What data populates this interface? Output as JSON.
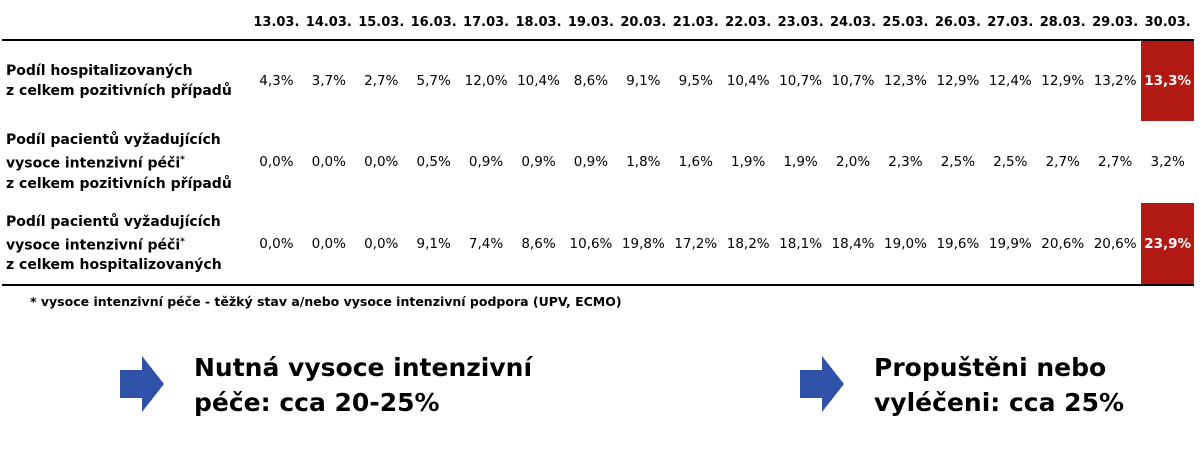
{
  "dates": [
    "13.03.",
    "14.03.",
    "15.03.",
    "16.03.",
    "17.03.",
    "18.03.",
    "19.03.",
    "20.03.",
    "21.03.",
    "22.03.",
    "23.03.",
    "24.03.",
    "25.03.",
    "26.03.",
    "27.03.",
    "28.03.",
    "29.03.",
    "30.03."
  ],
  "rows": [
    {
      "label_lines": [
        "Podíl hospitalizovaných",
        "z celkem pozitivních případů"
      ],
      "label_sup": [
        "",
        ""
      ],
      "values": [
        "4,3%",
        "3,7%",
        "2,7%",
        "5,7%",
        "12,0%",
        "10,4%",
        "8,6%",
        "9,1%",
        "9,5%",
        "10,4%",
        "10,7%",
        "10,7%",
        "12,3%",
        "12,9%",
        "12,4%",
        "12,9%",
        "13,2%",
        "13,3%"
      ],
      "highlight_last": true
    },
    {
      "label_lines": [
        "Podíl pacientů vyžadujících",
        "vysoce intenzivní péči",
        "z celkem pozitivních případů"
      ],
      "label_sup": [
        "",
        "*",
        ""
      ],
      "values": [
        "0,0%",
        "0,0%",
        "0,0%",
        "0,5%",
        "0,9%",
        "0,9%",
        "0,9%",
        "1,8%",
        "1,6%",
        "1,9%",
        "1,9%",
        "2,0%",
        "2,3%",
        "2,5%",
        "2,5%",
        "2,7%",
        "2,7%",
        "3,2%"
      ],
      "highlight_last": false
    },
    {
      "label_lines": [
        "Podíl pacientů vyžadujících",
        "vysoce intenzivní péči",
        "z celkem hospitalizovaných"
      ],
      "label_sup": [
        "",
        "*",
        ""
      ],
      "values": [
        "0,0%",
        "0,0%",
        "0,0%",
        "9,1%",
        "7,4%",
        "8,6%",
        "10,6%",
        "19,8%",
        "17,2%",
        "18,2%",
        "18,1%",
        "18,4%",
        "19,0%",
        "19,6%",
        "19,9%",
        "20,6%",
        "20,6%",
        "23,9%"
      ],
      "highlight_last": true
    }
  ],
  "footnote": "* vysoce intenzivní péče - těžký stav a/nebo vysoce intenzivní podpora (UPV, ECMO)",
  "callouts": {
    "left": [
      "Nutná vysoce intenzivní",
      "péče: cca 20-25%"
    ],
    "right": [
      "Propuštěni nebo",
      "vyléčeni: cca 25%"
    ]
  },
  "colors": {
    "highlight": "#b01a12",
    "arrow": "#2f52a8"
  }
}
